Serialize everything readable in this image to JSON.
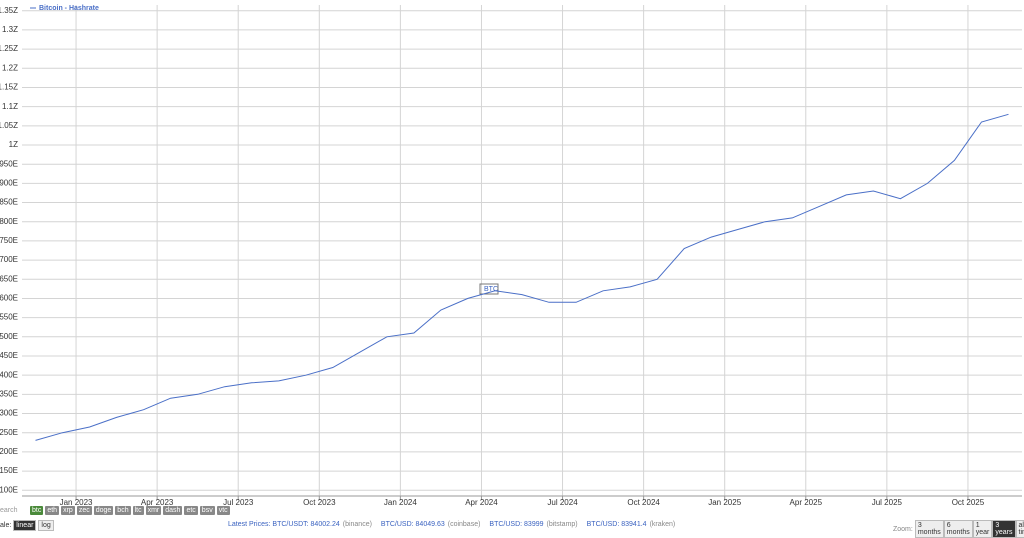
{
  "chart_data": {
    "type": "line",
    "legend": "top-left",
    "grid": true,
    "annotation": "BTC",
    "x": [
      "2022-11",
      "2022-12",
      "2023-01",
      "2023-02",
      "2023-03",
      "2023-04",
      "2023-05",
      "2023-06",
      "2023-07",
      "2023-08",
      "2023-09",
      "2023-10",
      "2023-11",
      "2023-12",
      "2024-01",
      "2024-02",
      "2024-03",
      "2024-04",
      "2024-05",
      "2024-06",
      "2024-07",
      "2024-08",
      "2024-09",
      "2024-10",
      "2024-11",
      "2024-12",
      "2025-01",
      "2025-02",
      "2025-03",
      "2025-04",
      "2025-05",
      "2025-06",
      "2025-07",
      "2025-08",
      "2025-09",
      "2025-10",
      "2025-11"
    ],
    "series": [
      {
        "name": "Bitcoin - Hashrate",
        "color": "#4a6fc7",
        "values": [
          230,
          250,
          265,
          290,
          310,
          340,
          350,
          370,
          380,
          385,
          400,
          420,
          460,
          500,
          510,
          570,
          600,
          620,
          610,
          590,
          590,
          620,
          630,
          650,
          730,
          760,
          780,
          800,
          810,
          840,
          870,
          880,
          860,
          900,
          960,
          1060,
          1080
        ]
      }
    ],
    "xlim": [
      "2022-11",
      "2025-11"
    ],
    "xticks": [
      {
        "value": "2023-01",
        "label": "Jan 2023"
      },
      {
        "value": "2023-04",
        "label": "Apr 2023"
      },
      {
        "value": "2023-07",
        "label": "Jul 2023"
      },
      {
        "value": "2023-10",
        "label": "Oct 2023"
      },
      {
        "value": "2024-01",
        "label": "Jan 2024"
      },
      {
        "value": "2024-04",
        "label": "Apr 2024"
      },
      {
        "value": "2024-07",
        "label": "Jul 2024"
      },
      {
        "value": "2024-10",
        "label": "Oct 2024"
      },
      {
        "value": "2025-01",
        "label": "Jan 2025"
      },
      {
        "value": "2025-04",
        "label": "Apr 2025"
      },
      {
        "value": "2025-07",
        "label": "Jul 2025"
      },
      {
        "value": "2025-10",
        "label": "Oct 2025"
      }
    ],
    "ylim": [
      85,
      1365
    ],
    "yticks": [
      {
        "value": 100,
        "label": "100E"
      },
      {
        "value": 150,
        "label": "150E"
      },
      {
        "value": 200,
        "label": "200E"
      },
      {
        "value": 250,
        "label": "250E"
      },
      {
        "value": 300,
        "label": "300E"
      },
      {
        "value": 350,
        "label": "350E"
      },
      {
        "value": 400,
        "label": "400E"
      },
      {
        "value": 450,
        "label": "450E"
      },
      {
        "value": 500,
        "label": "500E"
      },
      {
        "value": 550,
        "label": "550E"
      },
      {
        "value": 600,
        "label": "600E"
      },
      {
        "value": 650,
        "label": "650E"
      },
      {
        "value": 700,
        "label": "700E"
      },
      {
        "value": 750,
        "label": "750E"
      },
      {
        "value": 800,
        "label": "800E"
      },
      {
        "value": 850,
        "label": "850E"
      },
      {
        "value": 900,
        "label": "900E"
      },
      {
        "value": 950,
        "label": "950E"
      },
      {
        "value": 1000,
        "label": "1Z"
      },
      {
        "value": 1050,
        "label": "1.05Z"
      },
      {
        "value": 1100,
        "label": "1.1Z"
      },
      {
        "value": 1150,
        "label": "1.15Z"
      },
      {
        "value": 1200,
        "label": "1.2Z"
      },
      {
        "value": 1250,
        "label": "1.25Z"
      },
      {
        "value": 1300,
        "label": "1.3Z"
      },
      {
        "value": 1350,
        "label": "1.35Z"
      }
    ]
  },
  "ui": {
    "search": "earch",
    "coins": [
      "btc",
      "eth",
      "xrp",
      "zec",
      "doge",
      "bch",
      "ltc",
      "xmr",
      "dash",
      "etc",
      "bsv",
      "vtc"
    ],
    "scale_label": "ale:",
    "scales": [
      "linear",
      "log"
    ],
    "prices_label": "Latest Prices:",
    "prices": [
      "BTC/USDT: 84002.24",
      "(binance)",
      "BTC/USD: 84049.63",
      "(coinbase)",
      "BTC/USD: 83999",
      "(bitstamp)",
      "BTC/USD: 83941.4",
      "(kraken)"
    ],
    "zoom_label": "Zoom:",
    "zooms": [
      "3 months",
      "6 months",
      "1 year",
      "3 years",
      "all time"
    ]
  }
}
